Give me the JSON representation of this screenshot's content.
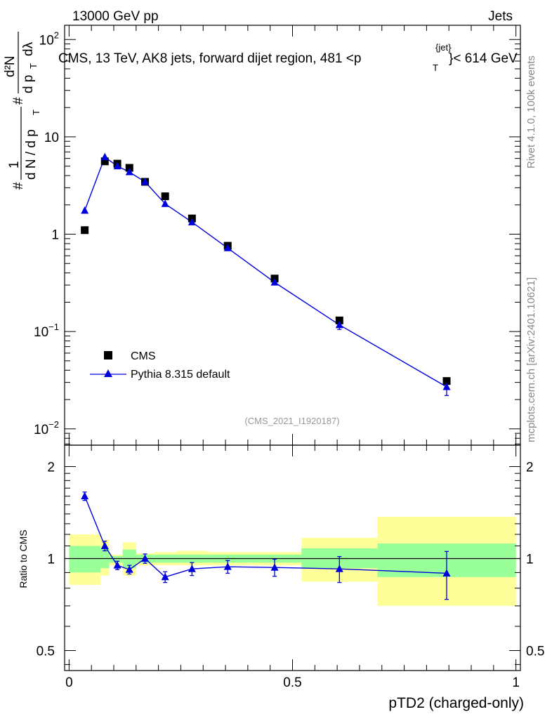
{
  "header": {
    "left": "13000 GeV pp",
    "right": "Jets",
    "title_main": "CMS, 13 TeV, AK8 jets, forward dijet region, 481 <p",
    "title_sup": "{jet}",
    "title_sub": "T",
    "title_end": "}< 614 GeV",
    "ref_label": "(CMS_2021_I1920187)"
  },
  "side_labels": {
    "rivet": "Rivet 4.1.0,  100k events",
    "mcplots": "mcplots.cern.ch [arXiv:2401.10621]"
  },
  "chart_data": [
    {
      "type": "scatter",
      "panel": "main",
      "xlabel": "pTD2 (charged-only)",
      "ylabel": "# 1/(dN/dpT) # d²N/(dpT dλ)",
      "ylabel_parts": {
        "hash1": "#",
        "one": "1",
        "frac_bot": "d N / d p",
        "sub_t": "T",
        "hash2": "#",
        "num": "d²N",
        "den": "d p",
        "den_sub": "T",
        "dl": "dλ"
      },
      "yscale": "log",
      "ylim": [
        0.0068,
        140
      ],
      "xlim": [
        -0.01,
        1.01
      ],
      "yticks": [
        {
          "value": 0.01,
          "label": "10",
          "exp": "−2"
        },
        {
          "value": 0.1,
          "label": "10",
          "exp": "−1"
        },
        {
          "value": 1,
          "label": "1",
          "exp": ""
        },
        {
          "value": 10,
          "label": "10",
          "exp": ""
        },
        {
          "value": 100,
          "label": "10",
          "exp": "2"
        }
      ],
      "series": [
        {
          "name": "CMS",
          "marker": "square",
          "color": "#000000",
          "x": [
            0.035,
            0.08,
            0.108,
            0.135,
            0.17,
            0.215,
            0.275,
            0.355,
            0.46,
            0.605,
            0.845
          ],
          "y": [
            1.1,
            5.6,
            5.3,
            4.8,
            3.45,
            2.45,
            1.45,
            0.76,
            0.35,
            0.13,
            0.031
          ],
          "yerr": [
            0,
            0,
            0,
            0,
            0,
            0,
            0,
            0,
            0,
            0.008,
            0.003
          ]
        },
        {
          "name": "Pythia 8.315 default",
          "marker": "triangle",
          "color": "#0000dd",
          "x": [
            0.035,
            0.08,
            0.108,
            0.135,
            0.17,
            0.215,
            0.275,
            0.355,
            0.46,
            0.605,
            0.845
          ],
          "y": [
            1.75,
            6.2,
            5.0,
            4.35,
            3.45,
            2.05,
            1.33,
            0.72,
            0.32,
            0.117,
            0.027
          ],
          "yerr": [
            0,
            0,
            0,
            0,
            0,
            0,
            0,
            0,
            0,
            0.012,
            0.005
          ]
        }
      ]
    },
    {
      "type": "line",
      "panel": "ratio",
      "ylabel": "Ratio to CMS",
      "yscale": "log",
      "ylim": [
        0.43,
        2.35
      ],
      "xlim": [
        -0.01,
        1.01
      ],
      "xticks": [
        {
          "value": 0,
          "label": "0"
        },
        {
          "value": 0.5,
          "label": "0.5"
        },
        {
          "value": 1,
          "label": "1"
        }
      ],
      "yticks": [
        {
          "value": 0.5,
          "label": "0.5"
        },
        {
          "value": 1,
          "label": "1"
        },
        {
          "value": 2,
          "label": "2"
        }
      ],
      "bands": [
        {
          "x0": 0.0,
          "x1": 0.07,
          "y_inner": [
            0.9,
            1.1
          ],
          "y_outer": [
            0.82,
            1.2
          ]
        },
        {
          "x0": 0.07,
          "x1": 0.09,
          "y_inner": [
            0.93,
            1.08
          ],
          "y_outer": [
            0.88,
            1.15
          ]
        },
        {
          "x0": 0.09,
          "x1": 0.12,
          "y_inner": [
            0.97,
            1.02
          ],
          "y_outer": [
            0.95,
            1.03
          ]
        },
        {
          "x0": 0.12,
          "x1": 0.15,
          "y_inner": [
            0.93,
            1.07
          ],
          "y_outer": [
            0.88,
            1.13
          ]
        },
        {
          "x0": 0.15,
          "x1": 0.19,
          "y_inner": [
            0.97,
            1.03
          ],
          "y_outer": [
            0.95,
            1.04
          ]
        },
        {
          "x0": 0.19,
          "x1": 0.24,
          "y_inner": [
            0.97,
            1.03
          ],
          "y_outer": [
            0.95,
            1.05
          ]
        },
        {
          "x0": 0.24,
          "x1": 0.31,
          "y_inner": [
            0.97,
            1.03
          ],
          "y_outer": [
            0.95,
            1.06
          ]
        },
        {
          "x0": 0.31,
          "x1": 0.4,
          "y_inner": [
            0.97,
            1.03
          ],
          "y_outer": [
            0.95,
            1.05
          ]
        },
        {
          "x0": 0.4,
          "x1": 0.52,
          "y_inner": [
            0.97,
            1.03
          ],
          "y_outer": [
            0.95,
            1.05
          ]
        },
        {
          "x0": 0.52,
          "x1": 0.69,
          "y_inner": [
            0.93,
            1.08
          ],
          "y_outer": [
            0.84,
            1.17
          ]
        },
        {
          "x0": 0.69,
          "x1": 1.0,
          "y_inner": [
            0.87,
            1.12
          ],
          "y_outer": [
            0.7,
            1.37
          ]
        }
      ],
      "series": [
        {
          "name": "Pythia 8.315 default / CMS",
          "color": "#0000dd",
          "x": [
            0.035,
            0.08,
            0.108,
            0.135,
            0.17,
            0.215,
            0.275,
            0.355,
            0.46,
            0.605,
            0.845
          ],
          "y": [
            1.6,
            1.1,
            0.95,
            0.92,
            1.0,
            0.87,
            0.925,
            0.94,
            0.935,
            0.925,
            0.895
          ],
          "yerr": [
            0.05,
            0.04,
            0.03,
            0.03,
            0.035,
            0.035,
            0.045,
            0.045,
            0.06,
            0.09,
            0.16
          ]
        }
      ]
    }
  ],
  "colors": {
    "band_outer": "#ffff99",
    "band_inner": "#99ff99",
    "mc": "#0000dd",
    "data": "#000000",
    "side_text": "#888888",
    "ref_text": "#999999"
  }
}
